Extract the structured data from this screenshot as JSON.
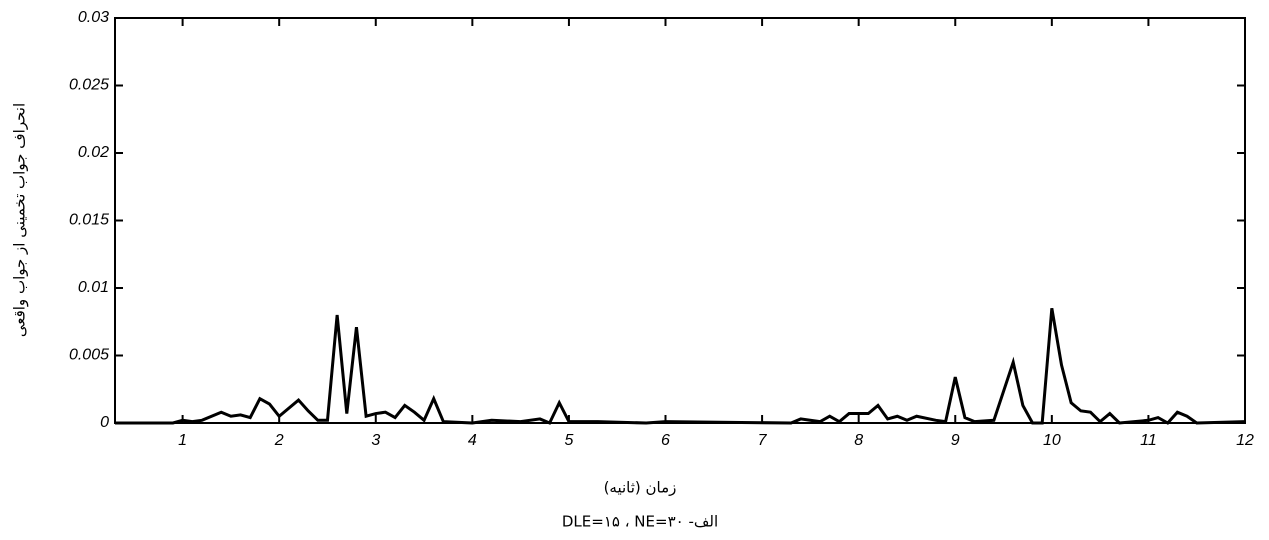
{
  "chart_data": {
    "type": "line",
    "y_label": "انحراف جواب تخمینی از جواب واقعی",
    "x_label": "زمان (ثانیه)",
    "caption": "الف- DLE=۱۵ ، NE=۳۰",
    "x": [
      0.3,
      0.9,
      1.0,
      1.1,
      1.2,
      1.4,
      1.5,
      1.6,
      1.7,
      1.8,
      1.9,
      2.0,
      2.2,
      2.3,
      2.4,
      2.5,
      2.6,
      2.7,
      2.8,
      2.9,
      3.0,
      3.1,
      3.2,
      3.3,
      3.4,
      3.5,
      3.6,
      3.7,
      4.0,
      4.2,
      4.5,
      4.7,
      4.8,
      4.9,
      5.0,
      5.3,
      5.8,
      6.0,
      7.3,
      7.4,
      7.6,
      7.7,
      7.8,
      7.9,
      8.1,
      8.2,
      8.3,
      8.4,
      8.5,
      8.6,
      8.8,
      8.9,
      9.0,
      9.1,
      9.2,
      9.4,
      9.6,
      9.7,
      9.8,
      9.9,
      10.0,
      10.1,
      10.2,
      10.3,
      10.4,
      10.5,
      10.6,
      10.7,
      11.0,
      11.1,
      11.2,
      11.3,
      11.4,
      11.5,
      12.0
    ],
    "series": [
      {
        "color": "#000000",
        "values": [
          0,
          0,
          0.0002,
          0.0001,
          0.0002,
          0.0008,
          0.0005,
          0.0006,
          0.0004,
          0.0018,
          0.0014,
          0.0005,
          0.0017,
          0.0009,
          0.0002,
          0.0002,
          0.008,
          0.0007,
          0.0071,
          0.0005,
          0.0007,
          0.0008,
          0.0004,
          0.0013,
          0.0008,
          0.0002,
          0.0018,
          0.0001,
          0,
          0.0002,
          0.0001,
          0.0003,
          0,
          0.0015,
          0.0001,
          0.0001,
          0,
          0.0001,
          0,
          0.0003,
          0.0001,
          0.0005,
          0.0001,
          0.0007,
          0.0007,
          0.0013,
          0.0003,
          0.0005,
          0.0002,
          0.0005,
          0.0002,
          0.0001,
          0.0034,
          0.0004,
          0.0001,
          0.0002,
          0.0045,
          0.0013,
          0,
          0,
          0.0085,
          0.0043,
          0.0015,
          0.0009,
          0.0008,
          0.0001,
          0.0007,
          0,
          0.0002,
          0.0004,
          0,
          0.0008,
          0.0005,
          0,
          0.0001
        ]
      }
    ],
    "xlim": [
      0.3,
      12
    ],
    "xticks": [
      1,
      2,
      3,
      4,
      5,
      6,
      7,
      8,
      9,
      10,
      11,
      12
    ],
    "ylim": [
      0,
      0.03
    ],
    "yticks": [
      0,
      0.005,
      0.01,
      0.015,
      0.02,
      0.025,
      0.03
    ]
  }
}
